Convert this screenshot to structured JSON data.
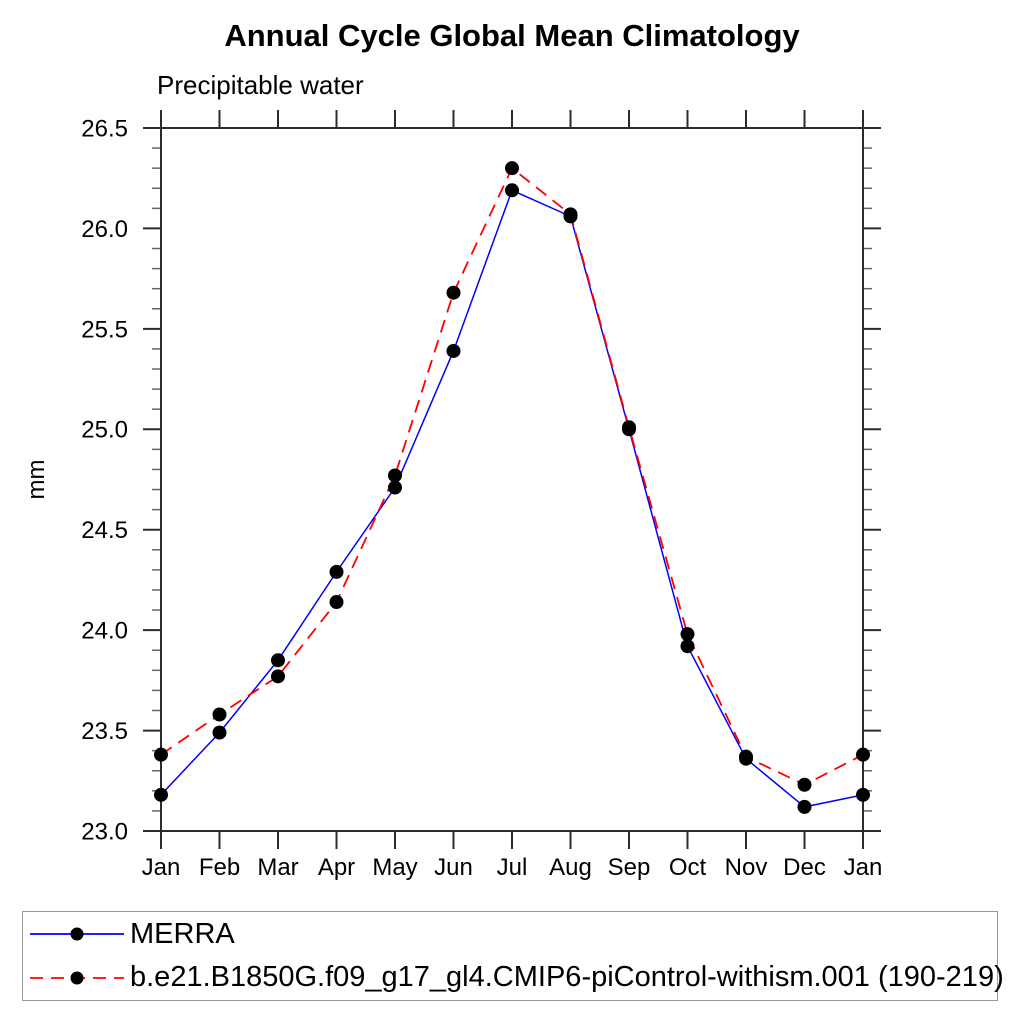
{
  "title": "Annual Cycle Global Mean Climatology",
  "subtitle": "Precipitable water",
  "chart_data": {
    "type": "line",
    "title": "Annual Cycle Global Mean Climatology",
    "subtitle": "Precipitable water",
    "ylabel": "mm",
    "xlabel": "",
    "categories": [
      "Jan",
      "Feb",
      "Mar",
      "Apr",
      "May",
      "Jun",
      "Jul",
      "Aug",
      "Sep",
      "Oct",
      "Nov",
      "Dec",
      "Jan"
    ],
    "series": [
      {
        "name": "MERRA",
        "color": "#0000ff",
        "line_style": "solid",
        "marker": "filled-circle",
        "values": [
          23.18,
          23.49,
          23.85,
          24.29,
          24.71,
          25.39,
          26.19,
          26.06,
          25.0,
          23.92,
          23.36,
          23.12,
          23.18
        ]
      },
      {
        "name": "b.e21.B1850G.f09_g17_gl4.CMIP6-piControl-withism.001 (190-219)",
        "color": "#ff0000",
        "line_style": "dashed",
        "marker": "filled-circle",
        "values": [
          23.38,
          23.58,
          23.77,
          24.14,
          24.77,
          25.68,
          26.3,
          26.07,
          25.01,
          23.98,
          23.37,
          23.23,
          23.38
        ]
      }
    ],
    "ylim": [
      23.0,
      26.5
    ],
    "ytick_major_step": 0.5,
    "ytick_minor_step": 0.1,
    "ytick_labels": [
      "23.0",
      "23.5",
      "24.0",
      "24.5",
      "25.0",
      "25.5",
      "26.0",
      "26.5"
    ],
    "marker_color": "#000000",
    "axis_color": "#2b2b2b",
    "minor_tick_color": "#666666",
    "grid": false,
    "legend_position": "bottom-left-box"
  }
}
